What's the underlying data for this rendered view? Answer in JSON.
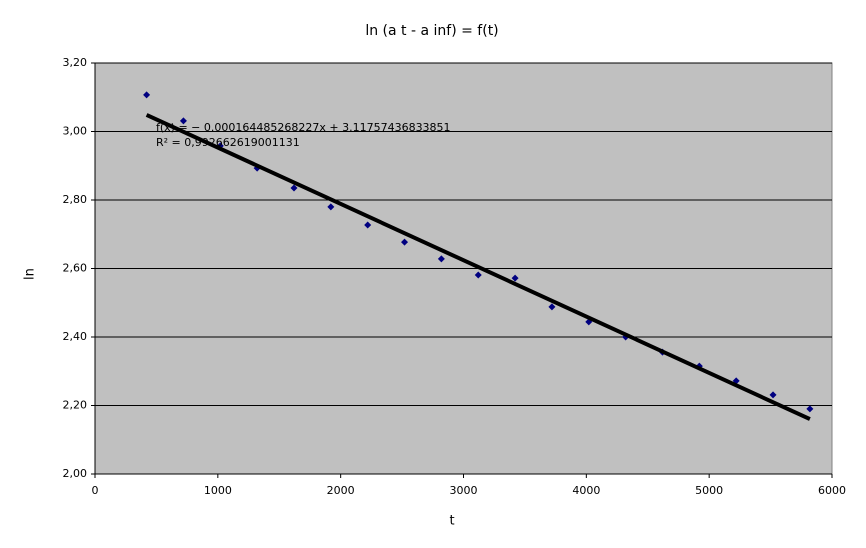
{
  "chart_data": {
    "type": "scatter",
    "title": "ln (a t - a inf) = f(t)",
    "x_label": "t",
    "y_label": "ln",
    "series": [
      {
        "name": "ln",
        "color": "#000080",
        "x": [
          420,
          720,
          1020,
          1320,
          1620,
          1920,
          2220,
          2520,
          2820,
          3120,
          3420,
          3720,
          4020,
          4320,
          4620,
          4920,
          5220,
          5520,
          5820
        ],
        "values": [
          3.107,
          3.031,
          2.958,
          2.893,
          2.835,
          2.78,
          2.727,
          2.677,
          2.628,
          2.581,
          2.572,
          2.488,
          2.444,
          2.4,
          2.356,
          2.315,
          2.272,
          2.231,
          2.19
        ]
      }
    ],
    "trendline": {
      "slope": -0.000164485268227,
      "intercept": 3.11757436833851,
      "color": "#000000",
      "label": "f(x) = − 0.000164485268227x + 3.11757436833851",
      "r2_label": "R² = 0,992662619001131"
    },
    "xlim": [
      0,
      6000
    ],
    "xticks": [
      0,
      1000,
      2000,
      3000,
      4000,
      5000,
      6000
    ],
    "ylim": [
      2.0,
      3.2
    ],
    "yticks": [
      {
        "value": 2.0,
        "label": "2,00"
      },
      {
        "value": 2.2,
        "label": "2,20"
      },
      {
        "value": 2.4,
        "label": "2,40"
      },
      {
        "value": 2.6,
        "label": "2,60"
      },
      {
        "value": 2.8,
        "label": "2,80"
      },
      {
        "value": 3.0,
        "label": "3,00"
      },
      {
        "value": 3.2,
        "label": "3,20"
      }
    ],
    "grid": true,
    "plot_background": "#c0c0c0"
  }
}
